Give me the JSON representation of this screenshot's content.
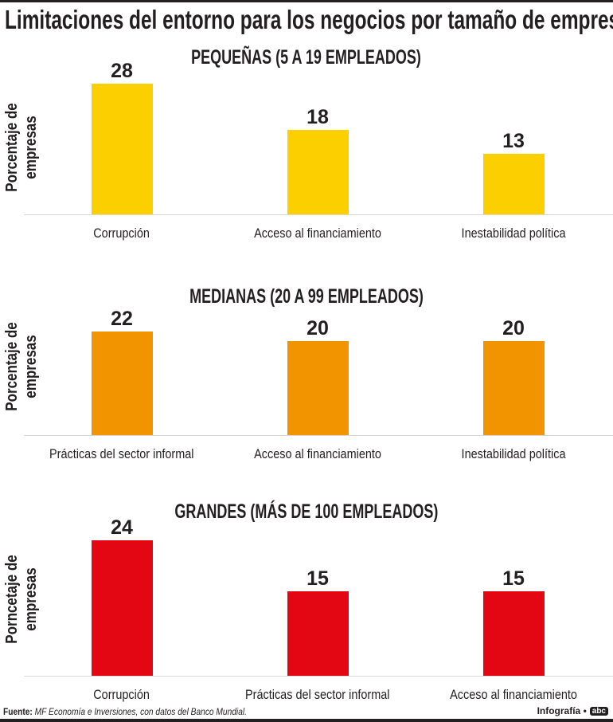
{
  "title": "Limitaciones del entorno para los negocios por tamaño de empresa",
  "chart_data": [
    {
      "type": "bar",
      "title": "PEQUEÑAS (5 A 19 EMPLEADOS)",
      "ylabel": [
        "Porcentaje de",
        "empresas"
      ],
      "categories": [
        "Corrupción",
        "Acceso al financiamiento",
        "Inestabilidad política"
      ],
      "values": [
        28,
        18,
        13
      ],
      "color": "#FCD000",
      "grid": false
    },
    {
      "type": "bar",
      "title": "MEDIANAS (20 A 99 EMPLEADOS)",
      "ylabel": [
        "Porcentaje de",
        "empresas"
      ],
      "categories": [
        "Prácticas del sector informal",
        "Acceso al financiamiento",
        "Inestabilidad política"
      ],
      "values": [
        22,
        20,
        20
      ],
      "color": "#F29400",
      "grid": false
    },
    {
      "type": "bar",
      "title": "GRANDES (MÁS DE 100 EMPLEADOS)",
      "ylabel": [
        "Porncetaje de",
        "empresas"
      ],
      "categories": [
        "Corrupción",
        "Prácticas del sector informal",
        "Acceso al financiamiento"
      ],
      "values": [
        24,
        15,
        15
      ],
      "color": "#E30613",
      "grid": false
    }
  ],
  "footer": {
    "source_label": "Fuente:",
    "source_text": "MF Economía e Inversiones, con datos del Banco Mundial.",
    "credit": "Infografía •",
    "logo": "abc"
  }
}
